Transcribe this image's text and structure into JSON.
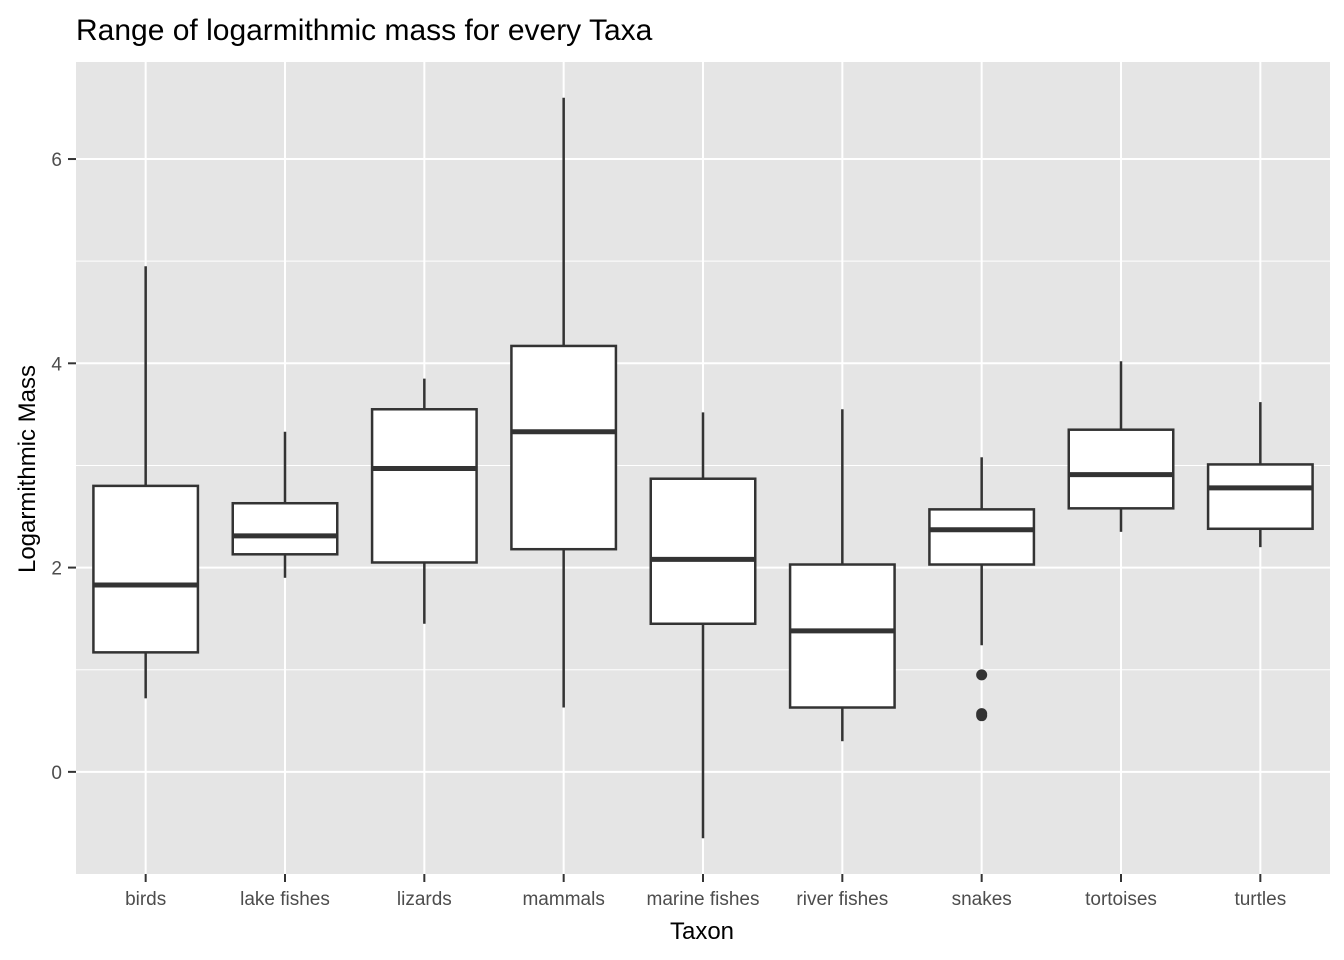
{
  "chart_data": {
    "type": "boxplot",
    "title": "Range of logarmithmic mass for every Taxa",
    "xlabel": "Taxon",
    "ylabel": "Logarmithmic Mass",
    "ylim": [
      -1.0,
      6.95
    ],
    "yticks": [
      0,
      2,
      4,
      6
    ],
    "grid": true,
    "categories": [
      "birds",
      "lake fishes",
      "lizards",
      "mammals",
      "marine fishes",
      "river fishes",
      "snakes",
      "tortoises",
      "turtles"
    ],
    "boxes": [
      {
        "category": "birds",
        "whisker_low": 0.72,
        "q1": 1.17,
        "median": 1.83,
        "q3": 2.8,
        "whisker_high": 4.95,
        "outliers": []
      },
      {
        "category": "lake fishes",
        "whisker_low": 1.9,
        "q1": 2.13,
        "median": 2.31,
        "q3": 2.63,
        "whisker_high": 3.33,
        "outliers": []
      },
      {
        "category": "lizards",
        "whisker_low": 1.45,
        "q1": 2.05,
        "median": 2.97,
        "q3": 3.55,
        "whisker_high": 3.85,
        "outliers": []
      },
      {
        "category": "mammals",
        "whisker_low": 0.63,
        "q1": 2.18,
        "median": 3.33,
        "q3": 4.17,
        "whisker_high": 6.6,
        "outliers": []
      },
      {
        "category": "marine fishes",
        "whisker_low": -0.65,
        "q1": 1.45,
        "median": 2.08,
        "q3": 2.87,
        "whisker_high": 3.52,
        "outliers": []
      },
      {
        "category": "river fishes",
        "whisker_low": 0.3,
        "q1": 0.63,
        "median": 1.38,
        "q3": 2.03,
        "whisker_high": 3.55,
        "outliers": []
      },
      {
        "category": "snakes",
        "whisker_low": 1.24,
        "q1": 2.03,
        "median": 2.37,
        "q3": 2.57,
        "whisker_high": 3.08,
        "outliers": [
          0.95,
          0.57,
          0.55
        ]
      },
      {
        "category": "tortoises",
        "whisker_low": 2.35,
        "q1": 2.58,
        "median": 2.91,
        "q3": 3.35,
        "whisker_high": 4.02,
        "outliers": []
      },
      {
        "category": "turtles",
        "whisker_low": 2.2,
        "q1": 2.38,
        "median": 2.78,
        "q3": 3.01,
        "whisker_high": 3.62,
        "outliers": []
      }
    ],
    "colors": {
      "panel_background": "#e5e5e5",
      "grid_line": "#ffffff",
      "box_fill": "#ffffff",
      "box_line": "#333333",
      "tick_label": "#4d4d4d"
    }
  }
}
